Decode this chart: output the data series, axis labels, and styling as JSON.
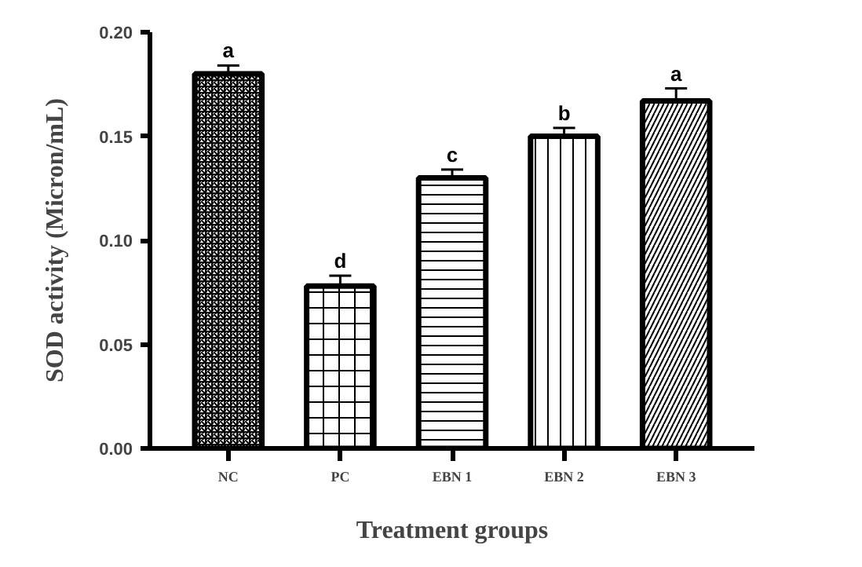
{
  "chart_data": {
    "type": "bar",
    "xlabel": "Treatment groups",
    "ylabel": "SOD activity (Micron/mL)",
    "categories": [
      "NC",
      "PC",
      "EBN 1",
      "EBN 2",
      "EBN 3"
    ],
    "values": [
      0.18,
      0.078,
      0.13,
      0.15,
      0.167
    ],
    "errors": [
      0.004,
      0.005,
      0.004,
      0.004,
      0.006
    ],
    "color": "#000000",
    "ylim": [
      0,
      0.2
    ],
    "yticks": [
      {
        "value": 0,
        "label": "0.00"
      },
      {
        "value": 0.05,
        "label": "0.05"
      },
      {
        "value": 0.1,
        "label": "0.10"
      },
      {
        "value": 0.15,
        "label": "0.15"
      },
      {
        "value": 0.2,
        "label": "0.20"
      }
    ],
    "annotations": [
      {
        "text": "a",
        "x": "NC",
        "y": 0.184
      },
      {
        "text": "d",
        "x": "PC",
        "y": 0.083
      },
      {
        "text": "c",
        "x": "EBN 1",
        "y": 0.134
      },
      {
        "text": "b",
        "x": "EBN 2",
        "y": 0.154
      },
      {
        "text": "a",
        "x": "EBN 3",
        "y": 0.173
      }
    ],
    "grid": false
  }
}
